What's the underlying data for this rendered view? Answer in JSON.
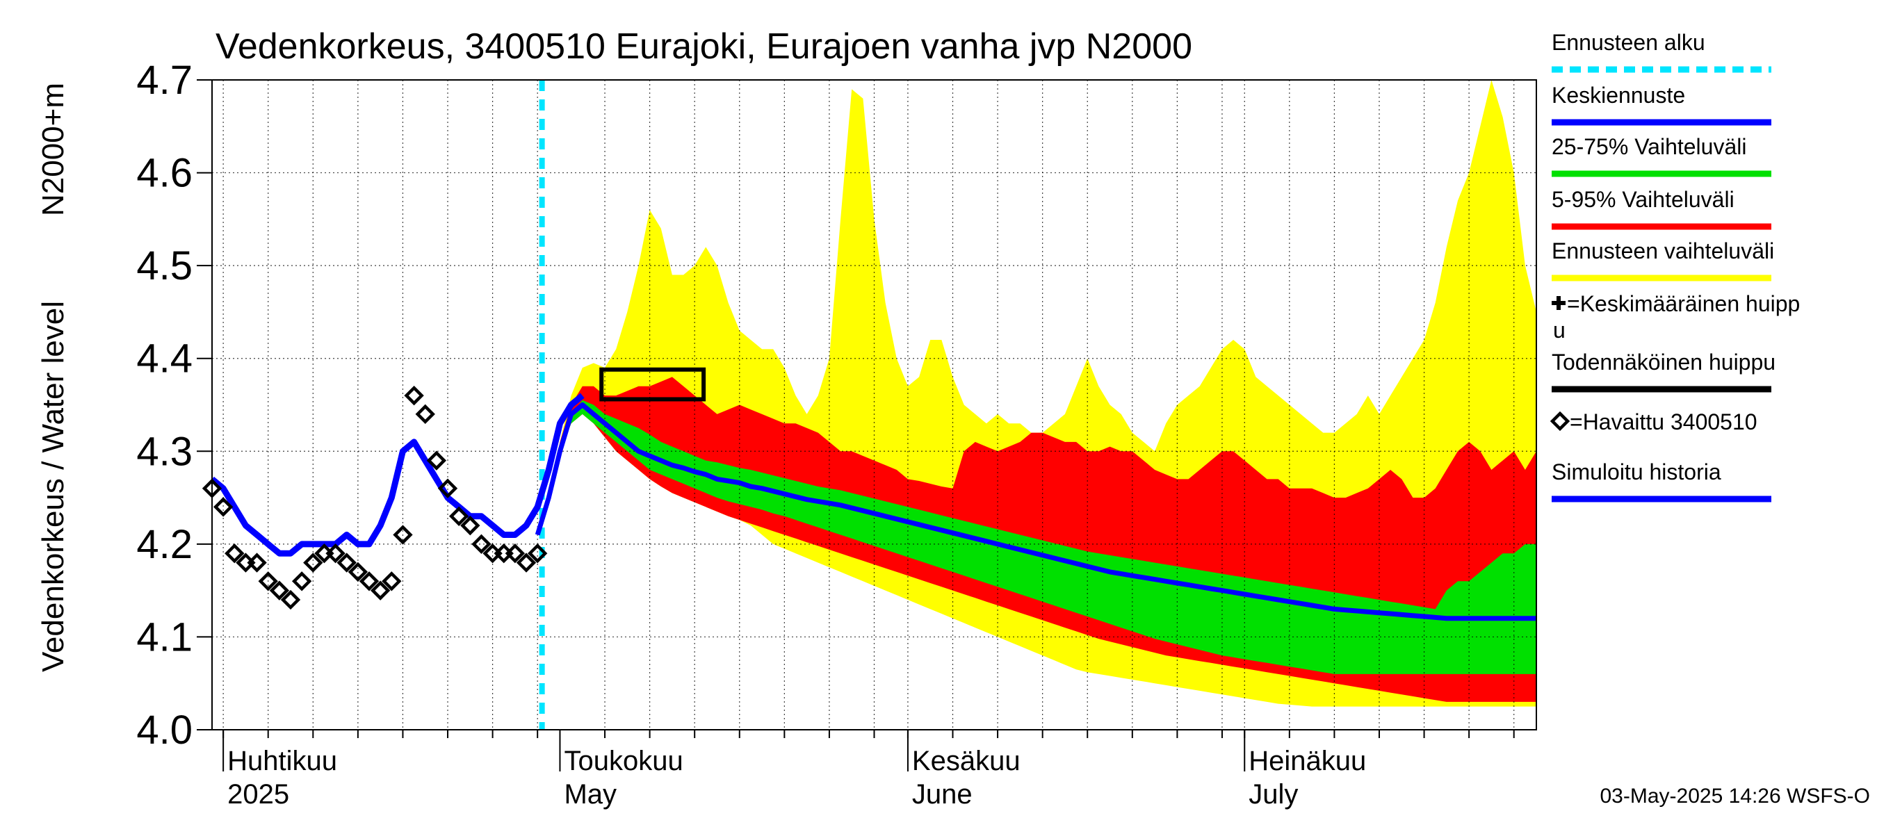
{
  "chart_data": {
    "type": "area",
    "title": "Vedenkorkeus, 3400510 Eurajoki, Eurajoen vanha jvp N2000",
    "ylabel": "Vedenkorkeus / Water level",
    "ylabel_unit": "N2000+m",
    "ylim": [
      4.0,
      4.7
    ],
    "y_ticks": [
      "4.0",
      "4.1",
      "4.2",
      "4.3",
      "4.4",
      "4.5",
      "4.6",
      "4.7"
    ],
    "xlim_days": [
      -1,
      117
    ],
    "grid": true,
    "month_labels": [
      {
        "day": 0,
        "line1": "Huhtikuu",
        "line2": "2025"
      },
      {
        "day": 30,
        "line1": "Toukokuu",
        "line2": "May"
      },
      {
        "day": 61,
        "line1": "Kesäkuu",
        "line2": "June"
      },
      {
        "day": 91,
        "line1": "Heinäkuu",
        "line2": "July"
      }
    ],
    "forecast_start_day": 28.4,
    "observed": {
      "name": "=Havaittu 3400510",
      "x": [
        -1,
        0,
        1,
        2,
        3,
        4,
        5,
        6,
        7,
        8,
        9,
        10,
        11,
        12,
        13,
        14,
        15,
        16,
        17,
        18,
        19,
        20,
        21,
        22,
        23,
        24,
        25,
        26,
        27,
        28
      ],
      "y": [
        4.26,
        4.24,
        4.19,
        4.18,
        4.18,
        4.16,
        4.15,
        4.14,
        4.16,
        4.18,
        4.19,
        4.19,
        4.18,
        4.17,
        4.16,
        4.15,
        4.16,
        4.21,
        4.36,
        4.34,
        4.29,
        4.26,
        4.23,
        4.22,
        4.2,
        4.19,
        4.19,
        4.19,
        4.18,
        4.19
      ]
    },
    "simulated_history": {
      "name": "Simuloitu historia",
      "x": [
        -1,
        0,
        1,
        2,
        3,
        4,
        5,
        6,
        7,
        8,
        9,
        10,
        11,
        12,
        13,
        14,
        15,
        16,
        17,
        18,
        19,
        20,
        21,
        22,
        23,
        24,
        25,
        26,
        27,
        28,
        29,
        30,
        31,
        32
      ],
      "y": [
        4.27,
        4.26,
        4.24,
        4.22,
        4.21,
        4.2,
        4.19,
        4.19,
        4.2,
        4.2,
        4.2,
        4.2,
        4.21,
        4.2,
        4.2,
        4.22,
        4.25,
        4.3,
        4.31,
        4.29,
        4.27,
        4.25,
        4.24,
        4.23,
        4.23,
        4.22,
        4.21,
        4.21,
        4.22,
        4.24,
        4.28,
        4.33,
        4.35,
        4.36
      ]
    },
    "forecast_x": [
      28,
      29,
      30,
      31,
      32,
      33,
      34,
      35,
      36,
      37,
      38,
      39,
      40,
      41,
      42,
      43,
      44,
      45,
      46,
      47,
      48,
      49,
      50,
      51,
      52,
      53,
      54,
      55,
      56,
      57,
      58,
      59,
      60,
      61,
      62,
      63,
      64,
      65,
      66,
      67,
      68,
      69,
      70,
      71,
      72,
      73,
      74,
      75,
      76,
      77,
      78,
      79,
      80,
      81,
      82,
      83,
      84,
      85,
      86,
      87,
      88,
      89,
      90,
      91,
      92,
      93,
      94,
      95,
      96,
      97,
      98,
      99,
      100,
      101,
      102,
      103,
      104,
      105,
      106,
      107,
      108,
      109,
      110,
      111,
      112,
      113,
      114,
      115,
      116,
      117
    ],
    "mean_forecast": {
      "name": "Keskiennuste",
      "y": [
        4.21,
        4.25,
        4.3,
        4.34,
        4.35,
        4.34,
        4.33,
        4.32,
        4.31,
        4.3,
        4.295,
        4.29,
        4.285,
        4.282,
        4.278,
        4.275,
        4.27,
        4.268,
        4.266,
        4.262,
        4.26,
        4.257,
        4.254,
        4.251,
        4.248,
        4.246,
        4.244,
        4.242,
        4.239,
        4.236,
        4.233,
        4.23,
        4.227,
        4.224,
        4.221,
        4.218,
        4.215,
        4.212,
        4.209,
        4.206,
        4.203,
        4.2,
        4.197,
        4.194,
        4.191,
        4.188,
        4.185,
        4.182,
        4.179,
        4.176,
        4.173,
        4.17,
        4.168,
        4.166,
        4.164,
        4.162,
        4.16,
        4.158,
        4.156,
        4.154,
        4.152,
        4.15,
        4.148,
        4.146,
        4.144,
        4.142,
        4.14,
        4.138,
        4.136,
        4.134,
        4.132,
        4.13,
        4.129,
        4.128,
        4.127,
        4.126,
        4.125,
        4.124,
        4.123,
        4.122,
        4.121,
        4.12,
        4.12,
        4.12,
        4.12,
        4.12,
        4.12,
        4.12,
        4.12,
        4.12
      ]
    },
    "band_25_75": {
      "name": "25-75% Vaihteluväli",
      "lower": [
        4.21,
        4.25,
        4.3,
        4.33,
        4.34,
        4.33,
        4.32,
        4.31,
        4.3,
        4.29,
        4.28,
        4.275,
        4.27,
        4.265,
        4.26,
        4.255,
        4.25,
        4.246,
        4.243,
        4.24,
        4.237,
        4.233,
        4.23,
        4.226,
        4.222,
        4.218,
        4.214,
        4.21,
        4.206,
        4.202,
        4.198,
        4.194,
        4.19,
        4.186,
        4.182,
        4.178,
        4.174,
        4.17,
        4.166,
        4.162,
        4.158,
        4.154,
        4.15,
        4.146,
        4.142,
        4.138,
        4.134,
        4.13,
        4.126,
        4.122,
        4.118,
        4.114,
        4.11,
        4.106,
        4.102,
        4.098,
        4.095,
        4.092,
        4.089,
        4.086,
        4.083,
        4.08,
        4.078,
        4.076,
        4.074,
        4.072,
        4.07,
        4.068,
        4.066,
        4.064,
        4.062,
        4.06,
        4.06,
        4.06,
        4.06,
        4.06,
        4.06,
        4.06,
        4.06,
        4.06,
        4.06,
        4.06,
        4.06,
        4.06,
        4.06,
        4.06,
        4.06,
        4.06,
        4.06,
        4.06
      ],
      "upper": [
        4.21,
        4.25,
        4.3,
        4.34,
        4.355,
        4.35,
        4.34,
        4.335,
        4.33,
        4.325,
        4.318,
        4.31,
        4.305,
        4.3,
        4.295,
        4.29,
        4.288,
        4.285,
        4.282,
        4.28,
        4.277,
        4.274,
        4.271,
        4.268,
        4.265,
        4.262,
        4.26,
        4.258,
        4.255,
        4.252,
        4.249,
        4.246,
        4.243,
        4.24,
        4.237,
        4.234,
        4.231,
        4.228,
        4.225,
        4.222,
        4.219,
        4.216,
        4.213,
        4.21,
        4.207,
        4.204,
        4.201,
        4.198,
        4.195,
        4.192,
        4.19,
        4.188,
        4.186,
        4.184,
        4.182,
        4.18,
        4.178,
        4.176,
        4.174,
        4.172,
        4.17,
        4.168,
        4.166,
        4.164,
        4.162,
        4.16,
        4.158,
        4.156,
        4.154,
        4.152,
        4.15,
        4.148,
        4.146,
        4.144,
        4.142,
        4.14,
        4.138,
        4.136,
        4.134,
        4.132,
        4.13,
        4.15,
        4.16,
        4.16,
        4.17,
        4.18,
        4.19,
        4.19,
        4.2,
        4.2
      ]
    },
    "band_5_95": {
      "name": "5-95% Vaihteluväli",
      "lower": [
        4.21,
        4.25,
        4.3,
        4.33,
        4.34,
        4.33,
        4.315,
        4.3,
        4.29,
        4.28,
        4.27,
        4.262,
        4.255,
        4.25,
        4.245,
        4.24,
        4.235,
        4.23,
        4.226,
        4.222,
        4.218,
        4.214,
        4.21,
        4.206,
        4.202,
        4.198,
        4.194,
        4.19,
        4.186,
        4.182,
        4.178,
        4.174,
        4.17,
        4.166,
        4.162,
        4.158,
        4.154,
        4.15,
        4.146,
        4.142,
        4.138,
        4.134,
        4.13,
        4.126,
        4.122,
        4.118,
        4.114,
        4.11,
        4.106,
        4.102,
        4.098,
        4.095,
        4.092,
        4.089,
        4.086,
        4.083,
        4.08,
        4.078,
        4.076,
        4.074,
        4.072,
        4.07,
        4.068,
        4.066,
        4.064,
        4.062,
        4.06,
        4.058,
        4.056,
        4.054,
        4.052,
        4.05,
        4.048,
        4.046,
        4.044,
        4.042,
        4.04,
        4.038,
        4.036,
        4.034,
        4.032,
        4.03,
        4.03,
        4.03,
        4.03,
        4.03,
        4.03,
        4.03,
        4.03,
        4.03
      ],
      "upper": [
        4.21,
        4.25,
        4.31,
        4.35,
        4.37,
        4.37,
        4.36,
        4.36,
        4.365,
        4.37,
        4.37,
        4.375,
        4.38,
        4.37,
        4.36,
        4.35,
        4.34,
        4.345,
        4.35,
        4.345,
        4.34,
        4.335,
        4.33,
        4.33,
        4.325,
        4.32,
        4.31,
        4.3,
        4.3,
        4.295,
        4.29,
        4.285,
        4.28,
        4.27,
        4.268,
        4.265,
        4.262,
        4.26,
        4.3,
        4.31,
        4.305,
        4.3,
        4.305,
        4.31,
        4.32,
        4.32,
        4.315,
        4.31,
        4.31,
        4.3,
        4.3,
        4.305,
        4.3,
        4.3,
        4.29,
        4.28,
        4.275,
        4.27,
        4.27,
        4.28,
        4.29,
        4.3,
        4.3,
        4.29,
        4.28,
        4.27,
        4.27,
        4.26,
        4.26,
        4.26,
        4.255,
        4.25,
        4.25,
        4.255,
        4.26,
        4.27,
        4.28,
        4.27,
        4.25,
        4.25,
        4.26,
        4.28,
        4.3,
        4.31,
        4.3,
        4.28,
        4.29,
        4.3,
        4.28,
        4.3
      ]
    },
    "band_full": {
      "name": "Ennusteen vaihteluväli",
      "lower": [
        4.21,
        4.25,
        4.3,
        4.33,
        4.34,
        4.33,
        4.315,
        4.3,
        4.29,
        4.28,
        4.27,
        4.262,
        4.255,
        4.25,
        4.245,
        4.24,
        4.235,
        4.23,
        4.226,
        4.22,
        4.21,
        4.2,
        4.195,
        4.19,
        4.185,
        4.18,
        4.175,
        4.17,
        4.165,
        4.16,
        4.155,
        4.15,
        4.145,
        4.14,
        4.135,
        4.13,
        4.125,
        4.12,
        4.115,
        4.11,
        4.105,
        4.1,
        4.095,
        4.09,
        4.085,
        4.08,
        4.075,
        4.07,
        4.065,
        4.062,
        4.06,
        4.058,
        4.056,
        4.054,
        4.052,
        4.05,
        4.048,
        4.046,
        4.044,
        4.042,
        4.04,
        4.038,
        4.036,
        4.034,
        4.032,
        4.03,
        4.028,
        4.027,
        4.026,
        4.025,
        4.025,
        4.025,
        4.025,
        4.025,
        4.025,
        4.025,
        4.025,
        4.025,
        4.025,
        4.025,
        4.025,
        4.025,
        4.025,
        4.025,
        4.025,
        4.025,
        4.025,
        4.025,
        4.025,
        4.025
      ],
      "upper": [
        4.21,
        4.25,
        4.31,
        4.36,
        4.39,
        4.395,
        4.39,
        4.41,
        4.45,
        4.5,
        4.56,
        4.54,
        4.49,
        4.49,
        4.5,
        4.52,
        4.5,
        4.46,
        4.43,
        4.42,
        4.41,
        4.41,
        4.39,
        4.36,
        4.34,
        4.36,
        4.4,
        4.55,
        4.69,
        4.68,
        4.55,
        4.46,
        4.4,
        4.37,
        4.38,
        4.42,
        4.42,
        4.38,
        4.35,
        4.34,
        4.33,
        4.34,
        4.33,
        4.33,
        4.32,
        4.32,
        4.33,
        4.34,
        4.37,
        4.4,
        4.37,
        4.35,
        4.34,
        4.32,
        4.31,
        4.3,
        4.33,
        4.35,
        4.36,
        4.37,
        4.39,
        4.41,
        4.42,
        4.41,
        4.38,
        4.37,
        4.36,
        4.35,
        4.34,
        4.33,
        4.32,
        4.32,
        4.33,
        4.34,
        4.36,
        4.34,
        4.36,
        4.38,
        4.4,
        4.42,
        4.46,
        4.52,
        4.57,
        4.6,
        4.65,
        4.7,
        4.66,
        4.6,
        4.5,
        4.45
      ]
    },
    "probable_peak_box": {
      "name": "Todennäköinen huippu",
      "x0": 33.7,
      "x1": 42.8,
      "y0": 4.356,
      "y1": 4.388
    },
    "legend": [
      {
        "label": "Ennusteen alku",
        "color": "#00e5ff",
        "style": "dashed"
      },
      {
        "label": "Keskiennuste",
        "color": "#0000ff",
        "style": "line"
      },
      {
        "label": "25-75% Vaihteluväli",
        "color": "#00e000",
        "style": "line"
      },
      {
        "label": "5-95% Vaihteluväli",
        "color": "#ff0000",
        "style": "line"
      },
      {
        "label": "Ennusteen vaihteluväli",
        "color": "#ffff00",
        "style": "line"
      },
      {
        "label": "=Keskimääräinen huipp",
        "label2": "u",
        "color": "#000000",
        "style": "plus"
      },
      {
        "label": "Todennäköinen huippu",
        "color": "#000000",
        "style": "line"
      },
      {
        "label": "=Havaittu 3400510",
        "color": "#000000",
        "style": "diamond"
      },
      {
        "label": "Simuloitu historia",
        "color": "#0000ff",
        "style": "line"
      }
    ],
    "colors": {
      "mean": "#0000ff",
      "band_25_75": "#00e000",
      "band_5_95": "#ff0000",
      "band_full": "#ffff00",
      "forecast_start": "#00e5ff",
      "observed": "#000000"
    },
    "footer": "03-May-2025 14:26 WSFS-O"
  }
}
